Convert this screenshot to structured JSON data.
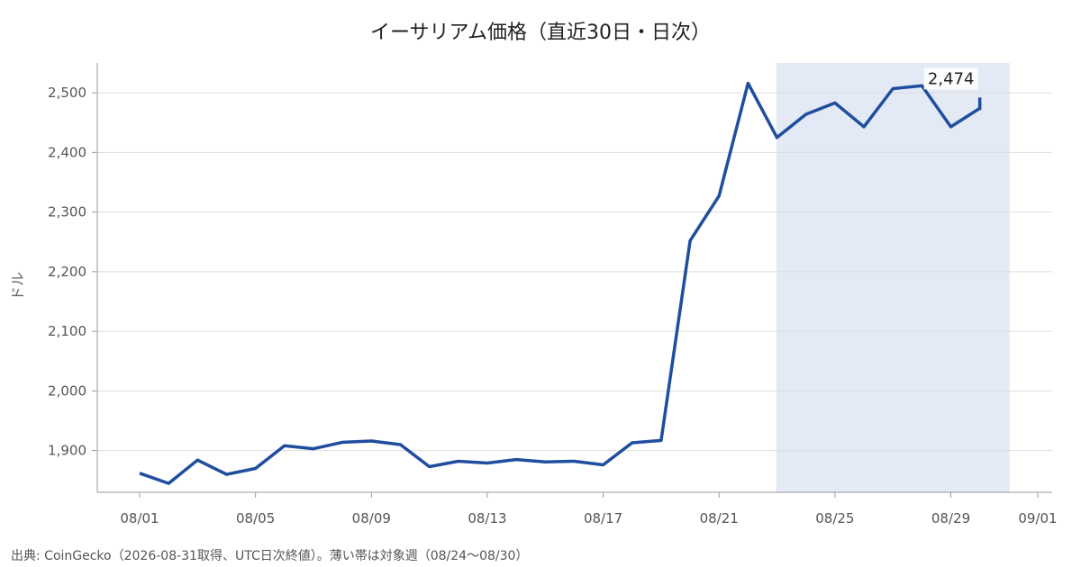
{
  "chart_data": {
    "type": "line",
    "title": "イーサリアム価格（直近30日・日次）",
    "ylabel": "ドル",
    "xlabel": "",
    "x": [
      "08/01",
      "08/02",
      "08/03",
      "08/04",
      "08/05",
      "08/06",
      "08/07",
      "08/08",
      "08/09",
      "08/10",
      "08/11",
      "08/12",
      "08/13",
      "08/14",
      "08/15",
      "08/16",
      "08/17",
      "08/18",
      "08/19",
      "08/20",
      "08/21",
      "08/22",
      "08/23",
      "08/24",
      "08/25",
      "08/26",
      "08/27",
      "08/28",
      "08/29",
      "08/30"
    ],
    "series": [
      {
        "name": "",
        "color": "#1f4e9e",
        "values": [
          1862,
          1845,
          1884,
          1860,
          1870,
          1908,
          1903,
          1914,
          1916,
          1910,
          1873,
          1882,
          1879,
          1885,
          1881,
          1882,
          1876,
          1913,
          1917,
          2252,
          2327,
          2516,
          2425,
          2464,
          2483,
          2443,
          2507,
          2512,
          2443,
          2474
        ]
      }
    ],
    "y_ticks": [
      1900,
      2000,
      2100,
      2200,
      2300,
      2400,
      2500
    ],
    "y_tick_labels": [
      "1,900",
      "2,000",
      "2,100",
      "2,200",
      "2,300",
      "2,400",
      "2,500"
    ],
    "x_ticks": [
      "08/01",
      "08/05",
      "08/09",
      "08/13",
      "08/17",
      "08/21",
      "08/25",
      "08/29",
      "09/01"
    ],
    "ylim": [
      1830,
      2550
    ],
    "xlim": [
      "2026-07-31",
      "2026-09-01"
    ],
    "grid": "horizontal",
    "shaded_range": {
      "start": "08/24",
      "end": "08/30",
      "color": "#e3eaf5"
    },
    "last_value_label": "2,474",
    "footnote": "出典: CoinGecko（2026-08-31取得、UTC日次終値）。薄い帯は対象週（08/24〜08/30）"
  }
}
